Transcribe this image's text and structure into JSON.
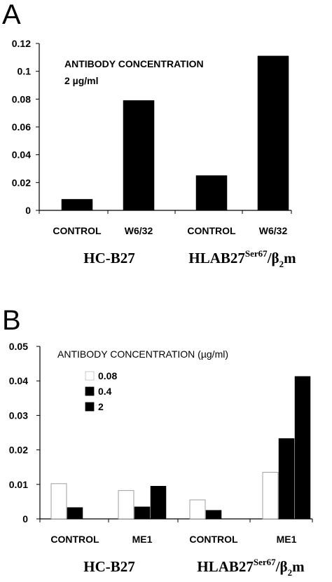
{
  "chart_data": [
    {
      "panel": "A",
      "type": "bar",
      "ylim": [
        0,
        0.12
      ],
      "yticks": [
        "0",
        "0.02",
        "0.04",
        "0.06",
        "0.08",
        "0.1",
        "0.12"
      ],
      "categories": [
        "CONTROL",
        "W6/32",
        "CONTROL",
        "W6/32"
      ],
      "groups": [
        {
          "label": "HC-B27",
          "label_rich": [
            "HC-B27"
          ]
        },
        {
          "label": "HLAB27Ser67/β2m",
          "label_rich": [
            "HLAB27",
            "Ser67",
            "/β",
            "2",
            "m"
          ]
        }
      ],
      "annotation": [
        "ANTIBODY CONCENTRATION",
        "2 µg/ml"
      ],
      "series": [
        {
          "values": [
            0.008,
            0.079,
            0.025,
            0.111
          ],
          "color": "#000000"
        }
      ]
    },
    {
      "panel": "B",
      "type": "bar",
      "ylim": [
        0,
        0.05
      ],
      "yticks": [
        "0",
        "0.01",
        "0.02",
        "0.03",
        "0.04",
        "0.05"
      ],
      "categories": [
        "CONTROL",
        "ME1",
        "CONTROL",
        "ME1"
      ],
      "groups": [
        {
          "label": "HC-B27",
          "label_rich": [
            "HC-B27"
          ]
        },
        {
          "label": "HLAB27Ser67/β2m",
          "label_rich": [
            "HLAB27",
            "Ser67",
            "/β",
            "2",
            "m"
          ]
        }
      ],
      "legend_title": "ANTIBODY CONCENTRATION (µg/ml)",
      "legend_position": "top-left",
      "series": [
        {
          "name": "0.08",
          "values": [
            0.0102,
            0.0082,
            0.0055,
            0.0135
          ],
          "color": "#ffffff"
        },
        {
          "name": "0.4",
          "values": [
            0.0033,
            0.0035,
            0.0025,
            0.0233
          ],
          "color": "#000000"
        },
        {
          "name": "2",
          "values": [
            0.0,
            0.0095,
            0.0,
            0.0413
          ],
          "color": "#000000"
        }
      ]
    }
  ]
}
